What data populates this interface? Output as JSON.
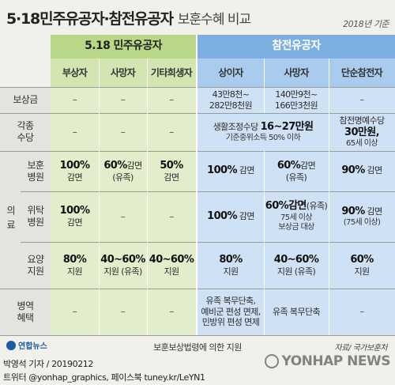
{
  "title": {
    "main": "5·18민주유공자·참전유공자",
    "sub": "보훈수혜 비교",
    "year": "2018년 기준"
  },
  "groups": {
    "green": "5.18 민주유공자",
    "blue": "참전유공자"
  },
  "columns": [
    "부상자",
    "사망자",
    "기타희생자",
    "상이자",
    "사망자",
    "단순참전자"
  ],
  "rows": {
    "compensation": "보상금",
    "allowance_1": "각종",
    "allowance_2": "수당",
    "medical": "의료",
    "med_bohun_1": "보훈",
    "med_bohun_2": "병원",
    "med_wituk_1": "위탁",
    "med_wituk_2": "병원",
    "med_yoyang_1": "요양",
    "med_yoyang_2": "지원",
    "military_1": "병역",
    "military_2": "혜택"
  },
  "dash": "–",
  "cells": {
    "comp_sangi_1": "43만8천~",
    "comp_sangi_2": "282만8천원",
    "comp_samang_1": "140만9천~",
    "comp_samang_2": "166만3천원",
    "allow_pre": "생활조정수당",
    "allow_big": "16~27만원",
    "allow_note": "기준중위소득 50% 이하",
    "allow_dan_1": "참전명예수당",
    "allow_dan_2": "30만원,",
    "allow_dan_3": "65세 이상",
    "bohun_g1_v": "100%",
    "bohun_g1_t": "감면",
    "bohun_g2_v": "60%",
    "bohun_g2_t": "감면",
    "bohun_g2_n": "(유족)",
    "bohun_g3_v": "50%",
    "bohun_g3_t": "감면",
    "bohun_b1_v": "100%",
    "bohun_b1_t": "감면",
    "bohun_b2_v": "60%",
    "bohun_b2_t": "감면",
    "bohun_b2_n": "(유족)",
    "bohun_b3_v": "90%",
    "bohun_b3_t": "감면",
    "wituk_g1_v": "100%",
    "wituk_g1_t": "감면",
    "wituk_b1_v": "100%",
    "wituk_b1_t": "감면",
    "wituk_b2_v": "60%감면",
    "wituk_b2_n": "(유족)",
    "wituk_b2_l2": "75세 이상",
    "wituk_b2_l3": "보상금 대상",
    "wituk_b3_v": "90%",
    "wituk_b3_t": "감면",
    "wituk_b3_n": "(75세 이상)",
    "yoyang_g1_v": "80%",
    "yoyang_g1_t": "지원",
    "yoyang_g2_v": "40~60%",
    "yoyang_g2_t": "지원 (유족)",
    "yoyang_g3_v": "40~60%",
    "yoyang_g3_t": "지원",
    "yoyang_b1_v": "80%",
    "yoyang_b1_t": "지원",
    "yoyang_b2_v": "40~60%",
    "yoyang_b2_t": "지원 (유족)",
    "yoyang_b3_v": "60%",
    "yoyang_b3_t": "지원",
    "mil_b1_1": "유족 복무단축,",
    "mil_b1_2": "예비군 편성 면제,",
    "mil_b1_3": "민방위 편성 면제",
    "mil_b2": "유족 복무단축"
  },
  "footer": {
    "note": "보훈보상법령에 의한 지원",
    "source": "자료/ 국가보훈처",
    "logo": "연합뉴스",
    "credit_1": "박영석 기자 / 20190212",
    "credit_2": "트위터 @yonhap_graphics, 페이스북 tuney.kr/LeYN1",
    "watermark": "YONHAP NEWS"
  },
  "colors": {
    "green": "#b9d887",
    "blue": "#7cafe0",
    "grey": "#e4e3de"
  }
}
